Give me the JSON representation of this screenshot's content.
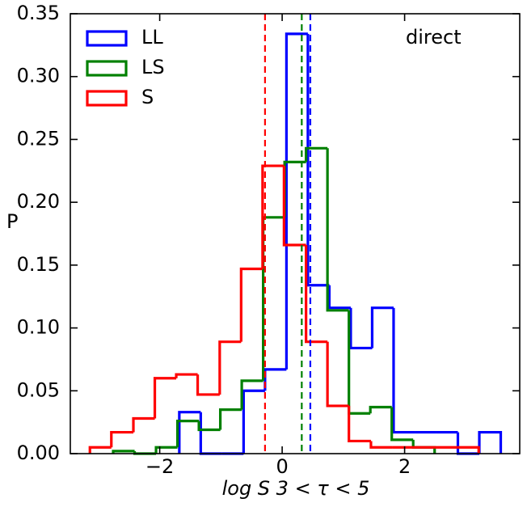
{
  "chart_data": {
    "type": "histogram",
    "xlabel": "log S   3 < τ < 5",
    "ylabel": "P",
    "annotation": "direct",
    "xlim": [
      -3.46,
      3.88
    ],
    "ylim": [
      0,
      0.35
    ],
    "xticks": [
      {
        "value": -2,
        "label": "−2"
      },
      0,
      2
    ],
    "yticks": [
      {
        "value": 0,
        "label": "0.00"
      },
      {
        "value": 0.05,
        "label": "0.05"
      },
      {
        "value": 0.1,
        "label": "0.10"
      },
      {
        "value": 0.15,
        "label": "0.15"
      },
      {
        "value": 0.2,
        "label": "0.20"
      },
      {
        "value": 0.25,
        "label": "0.25"
      },
      {
        "value": 0.3,
        "label": "0.30"
      },
      {
        "value": 0.35,
        "label": "0.35"
      }
    ],
    "legend": "upper left",
    "series": [
      {
        "name": "LL",
        "color": "#0000ff",
        "mean": 0.46,
        "bins": [
          -1.68,
          -1.33,
          -0.98,
          -0.63,
          -0.28,
          0.07,
          0.42,
          0.77,
          1.12,
          1.47,
          1.82,
          2.17,
          2.52,
          2.87,
          3.22,
          3.57
        ],
        "values": [
          0.033,
          0,
          0,
          0.05,
          0.067,
          0.334,
          0.134,
          0.116,
          0.084,
          0.116,
          0.017,
          0.017,
          0.017,
          0,
          0.017
        ]
      },
      {
        "name": "LS",
        "color": "#008000",
        "mean": 0.32,
        "bins": [
          -2.76,
          -2.41,
          -2.06,
          -1.71,
          -1.36,
          -1.01,
          -0.66,
          -0.31,
          0.04,
          0.39,
          0.74,
          1.09,
          1.44,
          1.79,
          2.14,
          2.49
        ],
        "values": [
          0.002,
          0,
          0.005,
          0.026,
          0.019,
          0.035,
          0.058,
          0.188,
          0.232,
          0.243,
          0.114,
          0.032,
          0.037,
          0.011,
          0.005
        ]
      },
      {
        "name": "S",
        "color": "#ff0000",
        "mean": -0.28,
        "bins": [
          -3.14,
          -2.79,
          -2.43,
          -2.08,
          -1.73,
          -1.38,
          -1.02,
          -0.67,
          -0.32,
          0.03,
          0.39,
          0.74,
          1.09,
          1.45,
          1.8,
          2.15,
          2.5,
          2.86,
          3.21
        ],
        "values": [
          0.005,
          0.017,
          0.028,
          0.06,
          0.063,
          0.047,
          0.089,
          0.147,
          0.229,
          0.166,
          0.089,
          0.038,
          0.01,
          0.005,
          0.005,
          0.005,
          0.005,
          0.005
        ]
      }
    ]
  }
}
